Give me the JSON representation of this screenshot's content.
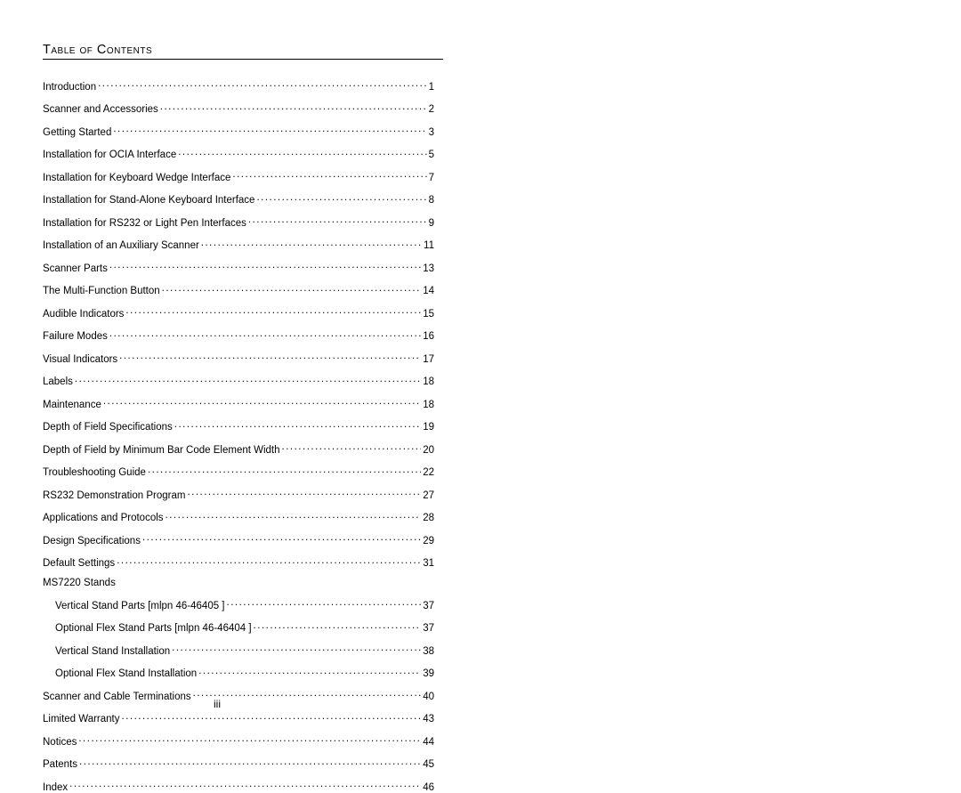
{
  "title": "Table of Contents",
  "page_roman": "iii",
  "entries": [
    {
      "label": "Introduction",
      "page": "1",
      "sub": false
    },
    {
      "label": "Scanner and Accessories",
      "page": "2",
      "sub": false
    },
    {
      "label": "Getting Started",
      "page": "3",
      "sub": false
    },
    {
      "label": "Installation for OCIA Interface",
      "page": "5",
      "sub": false
    },
    {
      "label": "Installation for Keyboard Wedge Interface",
      "page": "7",
      "sub": false
    },
    {
      "label": "Installation for Stand-Alone Keyboard Interface",
      "page": "8",
      "sub": false
    },
    {
      "label": "Installation for RS232 or Light Pen Interfaces",
      "page": "9",
      "sub": false
    },
    {
      "label": "Installation of an Auxiliary Scanner",
      "page": "11",
      "sub": false
    },
    {
      "label": "Scanner Parts",
      "page": "13",
      "sub": false
    },
    {
      "label": "The Multi-Function Button",
      "page": "14",
      "sub": false
    },
    {
      "label": "Audible Indicators",
      "page": "15",
      "sub": false
    },
    {
      "label": "Failure Modes",
      "page": "16",
      "sub": false
    },
    {
      "label": "Visual Indicators",
      "page": "17",
      "sub": false
    },
    {
      "label": "Labels",
      "page": "18",
      "sub": false
    },
    {
      "label": "Maintenance",
      "page": "18",
      "sub": false
    },
    {
      "label": "Depth of Field Specifications",
      "page": "19",
      "sub": false
    },
    {
      "label": "Depth of Field by Minimum Bar Code Element Width",
      "page": "20",
      "sub": false
    },
    {
      "label": "Troubleshooting Guide",
      "page": "22",
      "sub": false
    },
    {
      "label": "RS232 Demonstration Program",
      "page": "27",
      "sub": false
    },
    {
      "label": "Applications and Protocols",
      "page": "28",
      "sub": false
    },
    {
      "label": "Design Specifications",
      "page": "29",
      "sub": false
    },
    {
      "label": "Default Settings",
      "page": "31",
      "sub": false
    }
  ],
  "section_heading": "MS7220 Stands",
  "sub_entries": [
    {
      "label": "Vertical Stand Parts [mlpn 46-46405 ]",
      "page": "37",
      "sub": true
    },
    {
      "label": "Optional Flex Stand Parts [mlpn 46-46404 ]",
      "page": "37",
      "sub": true
    },
    {
      "label": "Vertical Stand Installation",
      "page": "38",
      "sub": true
    },
    {
      "label": "Optional Flex Stand Installation",
      "page": "39",
      "sub": true
    }
  ],
  "tail_entries": [
    {
      "label": "Scanner and Cable Terminations",
      "page": "40",
      "sub": false
    },
    {
      "label": "Limited Warranty",
      "page": "43",
      "sub": false
    },
    {
      "label": "Notices",
      "page": "44",
      "sub": false
    },
    {
      "label": "Patents",
      "page": "45",
      "sub": false
    },
    {
      "label": "Index",
      "page": "46",
      "sub": false
    }
  ]
}
